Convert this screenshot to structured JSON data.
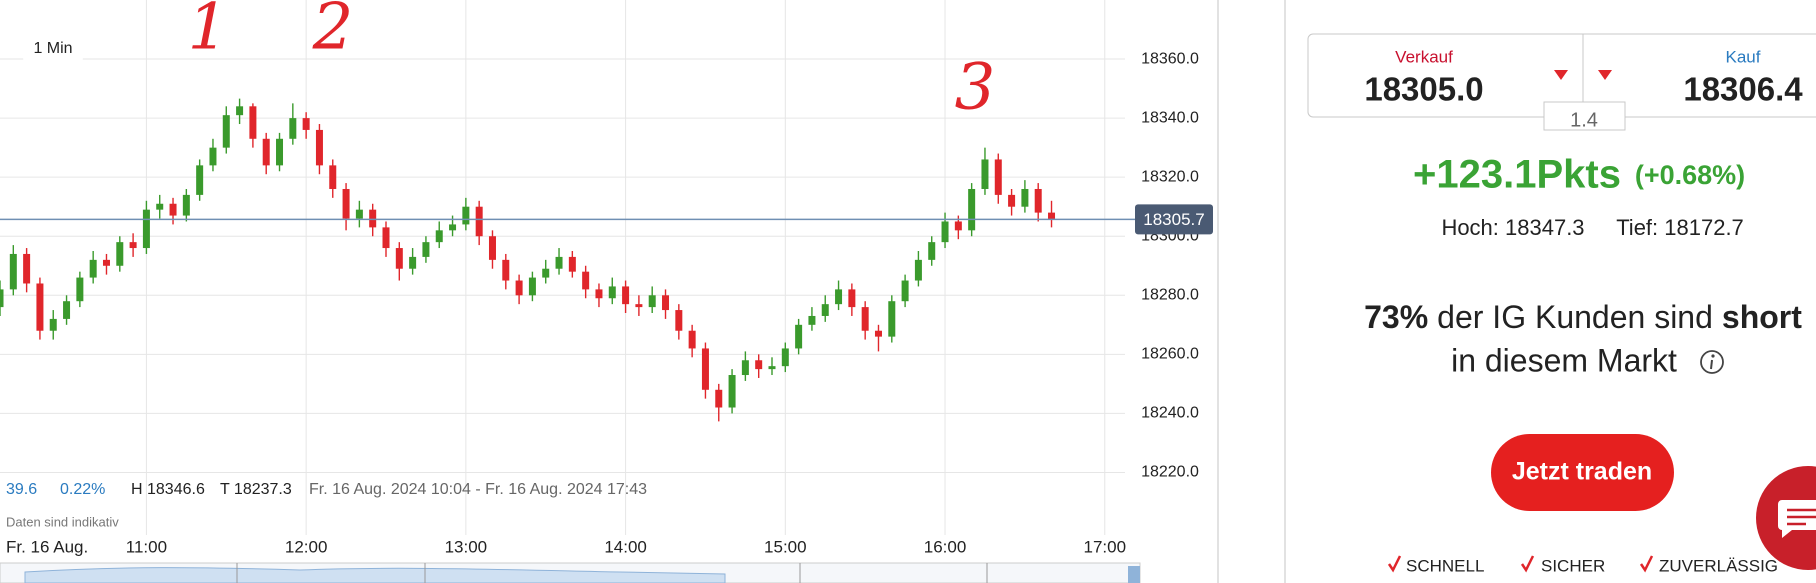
{
  "chart_data": {
    "type": "candlestick",
    "interval": "1 Min",
    "x": [
      "10:05",
      "10:10",
      "10:15",
      "10:20",
      "10:25",
      "10:30",
      "10:35",
      "10:40",
      "10:45",
      "10:50",
      "10:55",
      "11:00",
      "11:05",
      "11:10",
      "11:15",
      "11:20",
      "11:25",
      "11:30",
      "11:35",
      "11:40",
      "11:45",
      "11:50",
      "11:55",
      "12:00",
      "12:05",
      "12:10",
      "12:15",
      "12:20",
      "12:25",
      "12:30",
      "12:35",
      "12:40",
      "12:45",
      "12:50",
      "12:55",
      "13:00",
      "13:05",
      "13:10",
      "13:15",
      "13:20",
      "13:25",
      "13:30",
      "13:35",
      "13:40",
      "13:45",
      "13:50",
      "13:55",
      "14:00",
      "14:05",
      "14:10",
      "14:15",
      "14:20",
      "14:25",
      "14:30",
      "14:35",
      "14:40",
      "14:45",
      "14:50",
      "14:55",
      "15:00",
      "15:05",
      "15:10",
      "15:15",
      "15:20",
      "15:25",
      "15:30",
      "15:35",
      "15:40",
      "15:45",
      "15:50",
      "15:55",
      "16:00",
      "16:05",
      "16:10",
      "16:15",
      "16:20",
      "16:25",
      "16:30",
      "16:35",
      "16:40"
    ],
    "open": [
      18276,
      18282,
      18294,
      18284,
      18268,
      18272,
      18278,
      18286,
      18292,
      18290,
      18298,
      18296,
      18309,
      18311,
      18307,
      18314,
      18324,
      18330,
      18341,
      18344,
      18333,
      18324,
      18333,
      18340,
      18336,
      18324,
      18316,
      18306,
      18309,
      18303,
      18296,
      18289,
      18293,
      18298,
      18302,
      18304,
      18310,
      18300,
      18292,
      18285,
      18280,
      18286,
      18289,
      18293,
      18288,
      18282,
      18279,
      18283,
      18277,
      18276,
      18280,
      18275,
      18268,
      18262,
      18248,
      18242,
      18253,
      18258,
      18255,
      18256,
      18262,
      18270,
      18273,
      18277,
      18282,
      18276,
      18268,
      18266,
      18278,
      18285,
      18292,
      18298,
      18305,
      18302,
      18316,
      18326,
      18314,
      18310,
      18316,
      18308
    ],
    "high": [
      18285,
      18297,
      18296,
      18286,
      18275,
      18280,
      18288,
      18295,
      18294,
      18300,
      18301,
      18312,
      18314,
      18313,
      18316,
      18326,
      18333,
      18344,
      18346.6,
      18345,
      18335,
      18335,
      18345,
      18342,
      18338,
      18326,
      18318,
      18312,
      18311,
      18305,
      18298,
      18296,
      18300,
      18305,
      18307,
      18313,
      18312,
      18302,
      18294,
      18287,
      18288,
      18292,
      18296,
      18295,
      18290,
      18284,
      18286,
      18285,
      18280,
      18283,
      18282,
      18277,
      18270,
      18264,
      18250,
      18255,
      18261,
      18260,
      18259,
      18264,
      18272,
      18276,
      18280,
      18285,
      18284,
      18278,
      18270,
      18280,
      18287,
      18295,
      18300,
      18308,
      18307,
      18318,
      18330,
      18328,
      18316,
      18319,
      18318,
      18312
    ],
    "low": [
      18273,
      18280,
      18281,
      18265,
      18265,
      18270,
      18276,
      18284,
      18287,
      18288,
      18293,
      18294,
      18306,
      18304,
      18305,
      18312,
      18322,
      18328,
      18338,
      18330,
      18321,
      18322,
      18331,
      18333,
      18321,
      18313,
      18302,
      18303,
      18300,
      18293,
      18285,
      18287,
      18291,
      18296,
      18300,
      18302,
      18297,
      18289,
      18282,
      18277,
      18278,
      18284,
      18287,
      18286,
      18279,
      18276,
      18277,
      18274,
      18273,
      18274,
      18272,
      18265,
      18259,
      18245,
      18237.3,
      18240,
      18251,
      18252,
      18253,
      18254,
      18260,
      18268,
      18271,
      18275,
      18273,
      18265,
      18261,
      18264,
      18276,
      18283,
      18290,
      18296,
      18299,
      18300,
      18314,
      18311,
      18307,
      18308,
      18305,
      18303
    ],
    "close": [
      18282,
      18294,
      18284,
      18268,
      18272,
      18278,
      18286,
      18292,
      18290,
      18298,
      18296,
      18309,
      18311,
      18307,
      18314,
      18324,
      18330,
      18341,
      18344,
      18333,
      18324,
      18333,
      18340,
      18336,
      18324,
      18316,
      18306,
      18309,
      18303,
      18296,
      18289,
      18293,
      18298,
      18302,
      18304,
      18310,
      18300,
      18292,
      18285,
      18280,
      18286,
      18289,
      18293,
      18288,
      18282,
      18279,
      18283,
      18277,
      18276,
      18280,
      18275,
      18268,
      18262,
      18248,
      18242,
      18253,
      18258,
      18255,
      18256,
      18262,
      18270,
      18273,
      18277,
      18282,
      18276,
      18268,
      18266,
      18278,
      18285,
      18292,
      18298,
      18305,
      18302,
      18316,
      18326,
      18314,
      18310,
      18316,
      18308,
      18305.7
    ],
    "up_color": "#3a9a2c",
    "down_color": "#e0262b",
    "xlim": [
      "10:05",
      "17:20"
    ],
    "xticks": [
      "11:00",
      "12:00",
      "13:00",
      "14:00",
      "15:00",
      "16:00",
      "17:00"
    ],
    "ylim": [
      18210,
      18380
    ],
    "yticks": [
      {
        "value": 18220,
        "label": "18220.0"
      },
      {
        "value": 18240,
        "label": "18240.0"
      },
      {
        "value": 18260,
        "label": "18260.0"
      },
      {
        "value": 18280,
        "label": "18280.0"
      },
      {
        "value": 18300,
        "label": "18300.0"
      },
      {
        "value": 18320,
        "label": "18320.0"
      },
      {
        "value": 18340,
        "label": "18340.0"
      },
      {
        "value": 18360,
        "label": "18360.0"
      }
    ],
    "grid": true,
    "last_price": 18305.7,
    "last_price_color": "#4a5a73",
    "annotations": [
      "1",
      "2",
      "3"
    ]
  },
  "stats": {
    "change": "39.6",
    "change_pct": "0.22%",
    "high": "H 18346.6",
    "low": "T 18237.3",
    "range": "Fr. 16 Aug. 2024 10:04 - Fr. 16 Aug. 2024 17:43",
    "note": "Daten sind indikativ",
    "date": "Fr. 16 Aug."
  },
  "panel": {
    "sell_label": "Verkauf",
    "sell": "18305.0",
    "buy_label": "Kauf",
    "buy": "18306.4",
    "spread": "1.4",
    "change": "+123.1Pkts",
    "change_pct": "(+0.68%)",
    "high": "Hoch: 18347.3",
    "low": "Tief: 18172.7",
    "sentiment_pct": "73%",
    "sentiment_text": "der IG Kunden sind",
    "sentiment_dir": "short",
    "sentiment_text2": "in diesem Markt",
    "button": "Jetzt traden",
    "checks": [
      "SCHNELL",
      "SICHER",
      "ZUVERLÄSSIG"
    ]
  }
}
